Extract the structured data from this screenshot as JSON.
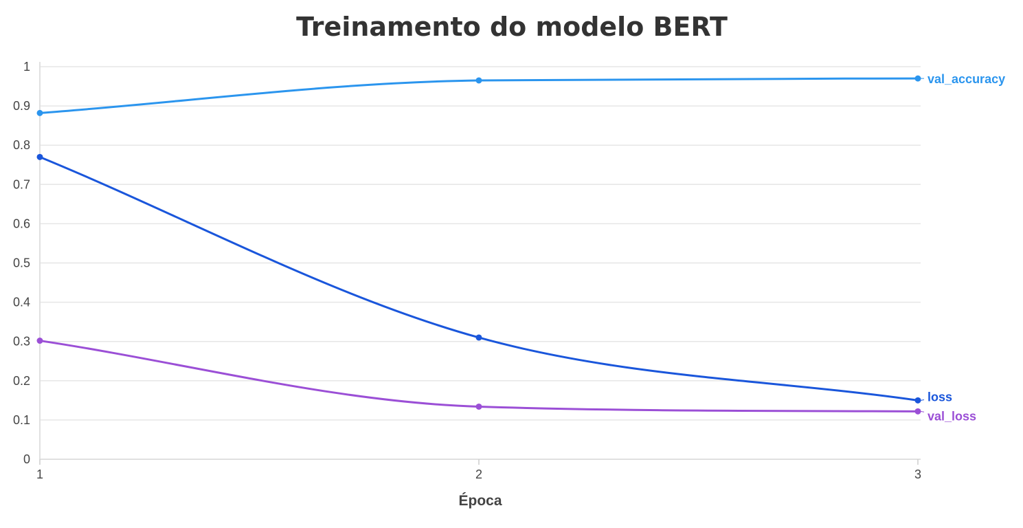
{
  "chart_data": {
    "type": "line",
    "title": "Treinamento do modelo BERT",
    "xlabel": "Época",
    "ylabel": "",
    "x": [
      1,
      2,
      3
    ],
    "x_ticks": [
      "1",
      "2",
      "3"
    ],
    "ylim": [
      0,
      1
    ],
    "y_ticks": [
      "0",
      "0.1",
      "0.2",
      "0.3",
      "0.4",
      "0.5",
      "0.6",
      "0.7",
      "0.8",
      "0.9",
      "1"
    ],
    "grid": true,
    "legend": "inline-right",
    "series": [
      {
        "name": "val_accuracy",
        "color": "#2b95ee",
        "values": [
          0.882,
          0.965,
          0.97
        ]
      },
      {
        "name": "loss",
        "color": "#1a56db",
        "values": [
          0.77,
          0.31,
          0.15
        ]
      },
      {
        "name": "val_loss",
        "color": "#9b4fd6",
        "values": [
          0.302,
          0.134,
          0.122
        ]
      }
    ]
  }
}
